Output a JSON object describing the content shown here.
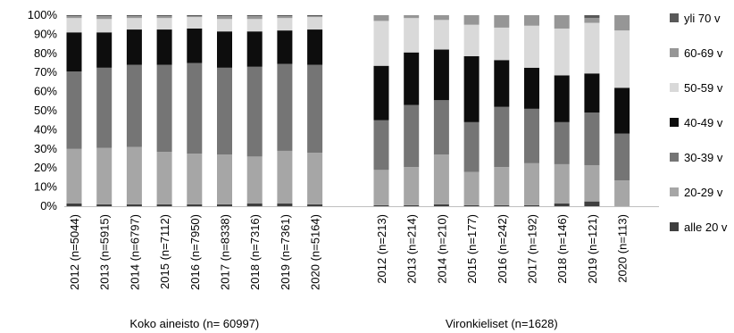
{
  "chart_data": {
    "type": "bar",
    "stacked": true,
    "percent": true,
    "ylim": [
      0,
      100
    ],
    "ytick_labels": [
      "0%",
      "10%",
      "20%",
      "30%",
      "40%",
      "50%",
      "60%",
      "70%",
      "80%",
      "90%",
      "100%"
    ],
    "grid": false,
    "legend_position": "right",
    "series": [
      {
        "name": "alle 20 v",
        "color": "#3f3f3f"
      },
      {
        "name": "20-29 v",
        "color": "#a6a6a6"
      },
      {
        "name": "30-39 v",
        "color": "#757575"
      },
      {
        "name": "40-49 v",
        "color": "#0d0d0d"
      },
      {
        "name": "50-59 v",
        "color": "#d9d9d9"
      },
      {
        "name": "60-69 v",
        "color": "#969696"
      },
      {
        "name": "yli 70 v",
        "color": "#595959"
      }
    ],
    "groups": [
      {
        "label": "Koko aineisto (n= 60997)",
        "categories": [
          "2012 (n=5044)",
          "2013 (n=5915)",
          "2014 (n=6797)",
          "2015 (n=7112)",
          "2016 (n=7950)",
          "2017 (n=8338)",
          "2018 (n=7316)",
          "2019 (n=7361)",
          "2020 (n=5164)"
        ],
        "values": [
          [
            1.5,
            28.5,
            40.5,
            20.5,
            7.5,
            1.0,
            0.5
          ],
          [
            1.0,
            29.5,
            42.0,
            18.5,
            7.0,
            1.5,
            0.5
          ],
          [
            1.0,
            30.0,
            43.0,
            18.5,
            6.0,
            1.0,
            0.5
          ],
          [
            1.0,
            27.5,
            45.5,
            18.5,
            6.0,
            1.0,
            0.5
          ],
          [
            1.0,
            26.5,
            47.5,
            18.0,
            6.0,
            0.5,
            0.5
          ],
          [
            1.0,
            26.0,
            45.5,
            19.0,
            6.5,
            1.5,
            0.5
          ],
          [
            1.5,
            24.5,
            47.0,
            18.5,
            6.5,
            1.5,
            0.5
          ],
          [
            1.5,
            27.5,
            45.5,
            17.5,
            6.5,
            1.0,
            0.5
          ],
          [
            1.0,
            27.0,
            46.0,
            18.5,
            6.5,
            0.5,
            0.5
          ]
        ]
      },
      {
        "label": "Vironkieliset (n=1628)",
        "categories": [
          "2012 (n=213)",
          "2013 (n=214)",
          "2014 (n=210)",
          "2015 (n=177)",
          "2016 (n=242)",
          "2017 (n=192)",
          "2018 (n=146)",
          "2019 (n=121)",
          "2020 (n=113)"
        ],
        "values": [
          [
            0.5,
            18.5,
            26.0,
            28.5,
            23.5,
            3.0,
            0.0
          ],
          [
            0.5,
            20.0,
            32.5,
            27.5,
            18.0,
            1.5,
            0.0
          ],
          [
            1.0,
            26.0,
            28.5,
            26.5,
            15.5,
            2.5,
            0.0
          ],
          [
            0.5,
            17.5,
            26.0,
            34.5,
            16.5,
            5.0,
            0.0
          ],
          [
            0.5,
            20.0,
            31.5,
            24.5,
            17.0,
            6.5,
            0.0
          ],
          [
            0.5,
            22.0,
            28.5,
            21.5,
            22.0,
            5.5,
            0.0
          ],
          [
            1.5,
            20.5,
            22.0,
            24.5,
            24.5,
            7.0,
            0.0
          ],
          [
            2.5,
            19.0,
            27.5,
            20.5,
            26.5,
            2.5,
            1.5
          ],
          [
            0.0,
            13.5,
            24.5,
            24.0,
            30.0,
            8.0,
            0.0
          ]
        ]
      }
    ]
  }
}
